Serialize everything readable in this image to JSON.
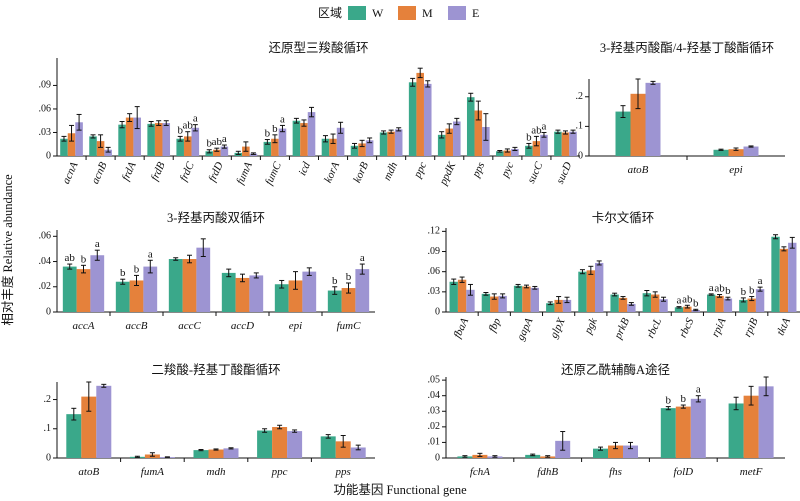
{
  "legend": {
    "title": "区域",
    "items": [
      {
        "name": "W",
        "color": "#3aa88a"
      },
      {
        "name": "M",
        "color": "#e5813b"
      },
      {
        "name": "E",
        "color": "#9d94d2"
      }
    ]
  },
  "axes": {
    "ylabel": "相对丰度 Relative abundance",
    "xlabel": "功能基因 Functional gene"
  },
  "chart_data": [
    {
      "type": "bar",
      "title": "还原型三羧酸循环",
      "ylim": [
        0,
        0.125
      ],
      "yticks": [
        0,
        0.03,
        0.06,
        0.09
      ],
      "categories": [
        "acnA",
        "acnB",
        "frdA",
        "frdB",
        "frdC",
        "frdD",
        "fumA",
        "fumC",
        "icd",
        "korA",
        "korB",
        "mdh",
        "ppc",
        "ppdK",
        "pps",
        "pyc",
        "sucC",
        "sucD"
      ],
      "series": [
        {
          "name": "W",
          "values": [
            0.022,
            0.025,
            0.04,
            0.041,
            0.022,
            0.006,
            0.004,
            0.018,
            0.045,
            0.022,
            0.013,
            0.03,
            0.094,
            0.027,
            0.075,
            0.006,
            0.013,
            0.031
          ],
          "errors": [
            0.003,
            0.002,
            0.004,
            0.003,
            0.003,
            0.002,
            0.002,
            0.003,
            0.003,
            0.004,
            0.003,
            0.002,
            0.005,
            0.004,
            0.005,
            0.001,
            0.003,
            0.002
          ]
        },
        {
          "name": "M",
          "values": [
            0.029,
            0.019,
            0.049,
            0.042,
            0.025,
            0.008,
            0.012,
            0.022,
            0.042,
            0.022,
            0.016,
            0.031,
            0.106,
            0.035,
            0.058,
            0.007,
            0.019,
            0.03
          ],
          "errors": [
            0.01,
            0.008,
            0.005,
            0.003,
            0.006,
            0.002,
            0.006,
            0.005,
            0.004,
            0.006,
            0.004,
            0.002,
            0.006,
            0.006,
            0.012,
            0.002,
            0.006,
            0.002
          ]
        },
        {
          "name": "E",
          "values": [
            0.043,
            0.008,
            0.049,
            0.042,
            0.036,
            0.012,
            0.003,
            0.035,
            0.056,
            0.036,
            0.02,
            0.034,
            0.092,
            0.044,
            0.037,
            0.009,
            0.027,
            0.031
          ],
          "errors": [
            0.01,
            0.003,
            0.014,
            0.003,
            0.004,
            0.002,
            0.001,
            0.004,
            0.006,
            0.007,
            0.003,
            0.002,
            0.004,
            0.004,
            0.017,
            0.002,
            0.003,
            0.002
          ]
        }
      ],
      "annotations": [
        {
          "category": "frdC",
          "labels": [
            "b",
            "ab",
            "a"
          ]
        },
        {
          "category": "frdD",
          "labels": [
            "b",
            "ab",
            "a"
          ]
        },
        {
          "category": "fumC",
          "labels": [
            "b",
            "b",
            "a"
          ]
        },
        {
          "category": "sucC",
          "labels": [
            "b",
            "ab",
            "a"
          ]
        }
      ]
    },
    {
      "type": "bar",
      "title": "3-羟基丙酸酯/4-羟基丁酸酯循环",
      "ylim": [
        0,
        0.26
      ],
      "yticks": [
        0,
        0.1,
        0.2
      ],
      "categories": [
        "atoB",
        "epi"
      ],
      "series": [
        {
          "name": "W",
          "values": [
            0.15,
            0.021
          ],
          "errors": [
            0.02,
            0.002
          ]
        },
        {
          "name": "M",
          "values": [
            0.21,
            0.023
          ],
          "errors": [
            0.05,
            0.004
          ]
        },
        {
          "name": "E",
          "values": [
            0.247,
            0.032
          ],
          "errors": [
            0.005,
            0.002
          ]
        }
      ],
      "annotations": []
    },
    {
      "type": "bar",
      "title": "3-羟基丙酸双循环",
      "ylim": [
        0,
        0.065
      ],
      "yticks": [
        0,
        0.02,
        0.04,
        0.06
      ],
      "categories": [
        "accA",
        "accB",
        "accC",
        "accD",
        "epi",
        "fumC"
      ],
      "series": [
        {
          "name": "W",
          "values": [
            0.036,
            0.024,
            0.042,
            0.031,
            0.022,
            0.017
          ],
          "errors": [
            0.002,
            0.002,
            0.001,
            0.003,
            0.003,
            0.003
          ]
        },
        {
          "name": "M",
          "values": [
            0.034,
            0.025,
            0.042,
            0.027,
            0.025,
            0.019
          ],
          "errors": [
            0.003,
            0.004,
            0.003,
            0.003,
            0.007,
            0.004
          ]
        },
        {
          "name": "E",
          "values": [
            0.045,
            0.036,
            0.051,
            0.029,
            0.032,
            0.034
          ],
          "errors": [
            0.004,
            0.005,
            0.007,
            0.002,
            0.003,
            0.004
          ]
        }
      ],
      "annotations": [
        {
          "category": "accA",
          "labels": [
            "ab",
            "b",
            "a"
          ]
        },
        {
          "category": "accB",
          "labels": [
            "b",
            "b",
            "a"
          ]
        },
        {
          "category": "fumC",
          "labels": [
            "b",
            "b",
            "a"
          ]
        }
      ]
    },
    {
      "type": "bar",
      "title": "卡尔文循环",
      "ylim": [
        0,
        0.125
      ],
      "yticks": [
        0,
        0.03,
        0.06,
        0.09,
        0.12
      ],
      "categories": [
        "fbaA",
        "fbp",
        "gapA",
        "glpX",
        "pgk",
        "prkB",
        "rbcL",
        "rbcS",
        "rpiA",
        "rpiB",
        "tktA"
      ],
      "series": [
        {
          "name": "W",
          "values": [
            0.045,
            0.027,
            0.039,
            0.013,
            0.06,
            0.026,
            0.028,
            0.007,
            0.026,
            0.018,
            0.112
          ],
          "errors": [
            0.004,
            0.002,
            0.002,
            0.002,
            0.003,
            0.002,
            0.004,
            0.001,
            0.001,
            0.003,
            0.003
          ]
        },
        {
          "name": "M",
          "values": [
            0.048,
            0.023,
            0.038,
            0.018,
            0.062,
            0.021,
            0.026,
            0.008,
            0.024,
            0.02,
            0.094
          ],
          "errors": [
            0.004,
            0.004,
            0.002,
            0.005,
            0.006,
            0.002,
            0.004,
            0.002,
            0.002,
            0.003,
            0.003
          ]
        },
        {
          "name": "E",
          "values": [
            0.033,
            0.024,
            0.036,
            0.018,
            0.073,
            0.012,
            0.019,
            0.003,
            0.02,
            0.034,
            0.103
          ],
          "errors": [
            0.008,
            0.003,
            0.002,
            0.004,
            0.003,
            0.002,
            0.003,
            0.001,
            0.002,
            0.003,
            0.008
          ]
        }
      ],
      "annotations": [
        {
          "category": "rbcS",
          "labels": [
            "a",
            "ab",
            "b"
          ]
        },
        {
          "category": "rpiA",
          "labels": [
            "a",
            "ab",
            "b"
          ]
        },
        {
          "category": "rpiB",
          "labels": [
            "b",
            "b",
            "a"
          ]
        }
      ]
    },
    {
      "type": "bar",
      "title": "二羧酸-羟基丁酸酯循环",
      "ylim": [
        0,
        0.26
      ],
      "yticks": [
        0,
        0.1,
        0.2
      ],
      "categories": [
        "atoB",
        "fumA",
        "mdh",
        "ppc",
        "pps"
      ],
      "series": [
        {
          "name": "W",
          "values": [
            0.15,
            0.004,
            0.027,
            0.094,
            0.074
          ],
          "errors": [
            0.02,
            0.002,
            0.002,
            0.006,
            0.006
          ]
        },
        {
          "name": "M",
          "values": [
            0.21,
            0.012,
            0.029,
            0.106,
            0.057
          ],
          "errors": [
            0.05,
            0.006,
            0.002,
            0.006,
            0.02
          ]
        },
        {
          "name": "E",
          "values": [
            0.247,
            0.003,
            0.033,
            0.092,
            0.036
          ],
          "errors": [
            0.005,
            0.001,
            0.002,
            0.004,
            0.008
          ]
        }
      ],
      "annotations": []
    },
    {
      "type": "bar",
      "title": "还原乙酰辅酶A途径",
      "ylim": [
        0,
        0.052
      ],
      "yticks": [
        0,
        0.01,
        0.02,
        0.03,
        0.04,
        0.05
      ],
      "categories": [
        "fchA",
        "fdhB",
        "fhs",
        "folD",
        "metF"
      ],
      "series": [
        {
          "name": "W",
          "values": [
            0.001,
            0.002,
            0.006,
            0.032,
            0.035
          ],
          "errors": [
            0.0005,
            0.0005,
            0.001,
            0.001,
            0.004
          ]
        },
        {
          "name": "M",
          "values": [
            0.002,
            0.001,
            0.008,
            0.033,
            0.04
          ],
          "errors": [
            0.001,
            0.0005,
            0.002,
            0.001,
            0.006
          ]
        },
        {
          "name": "E",
          "values": [
            0.001,
            0.011,
            0.008,
            0.038,
            0.046
          ],
          "errors": [
            0.0005,
            0.006,
            0.002,
            0.002,
            0.006
          ]
        }
      ],
      "annotations": [
        {
          "category": "folD",
          "labels": [
            "b",
            "b",
            "a"
          ]
        }
      ]
    }
  ]
}
